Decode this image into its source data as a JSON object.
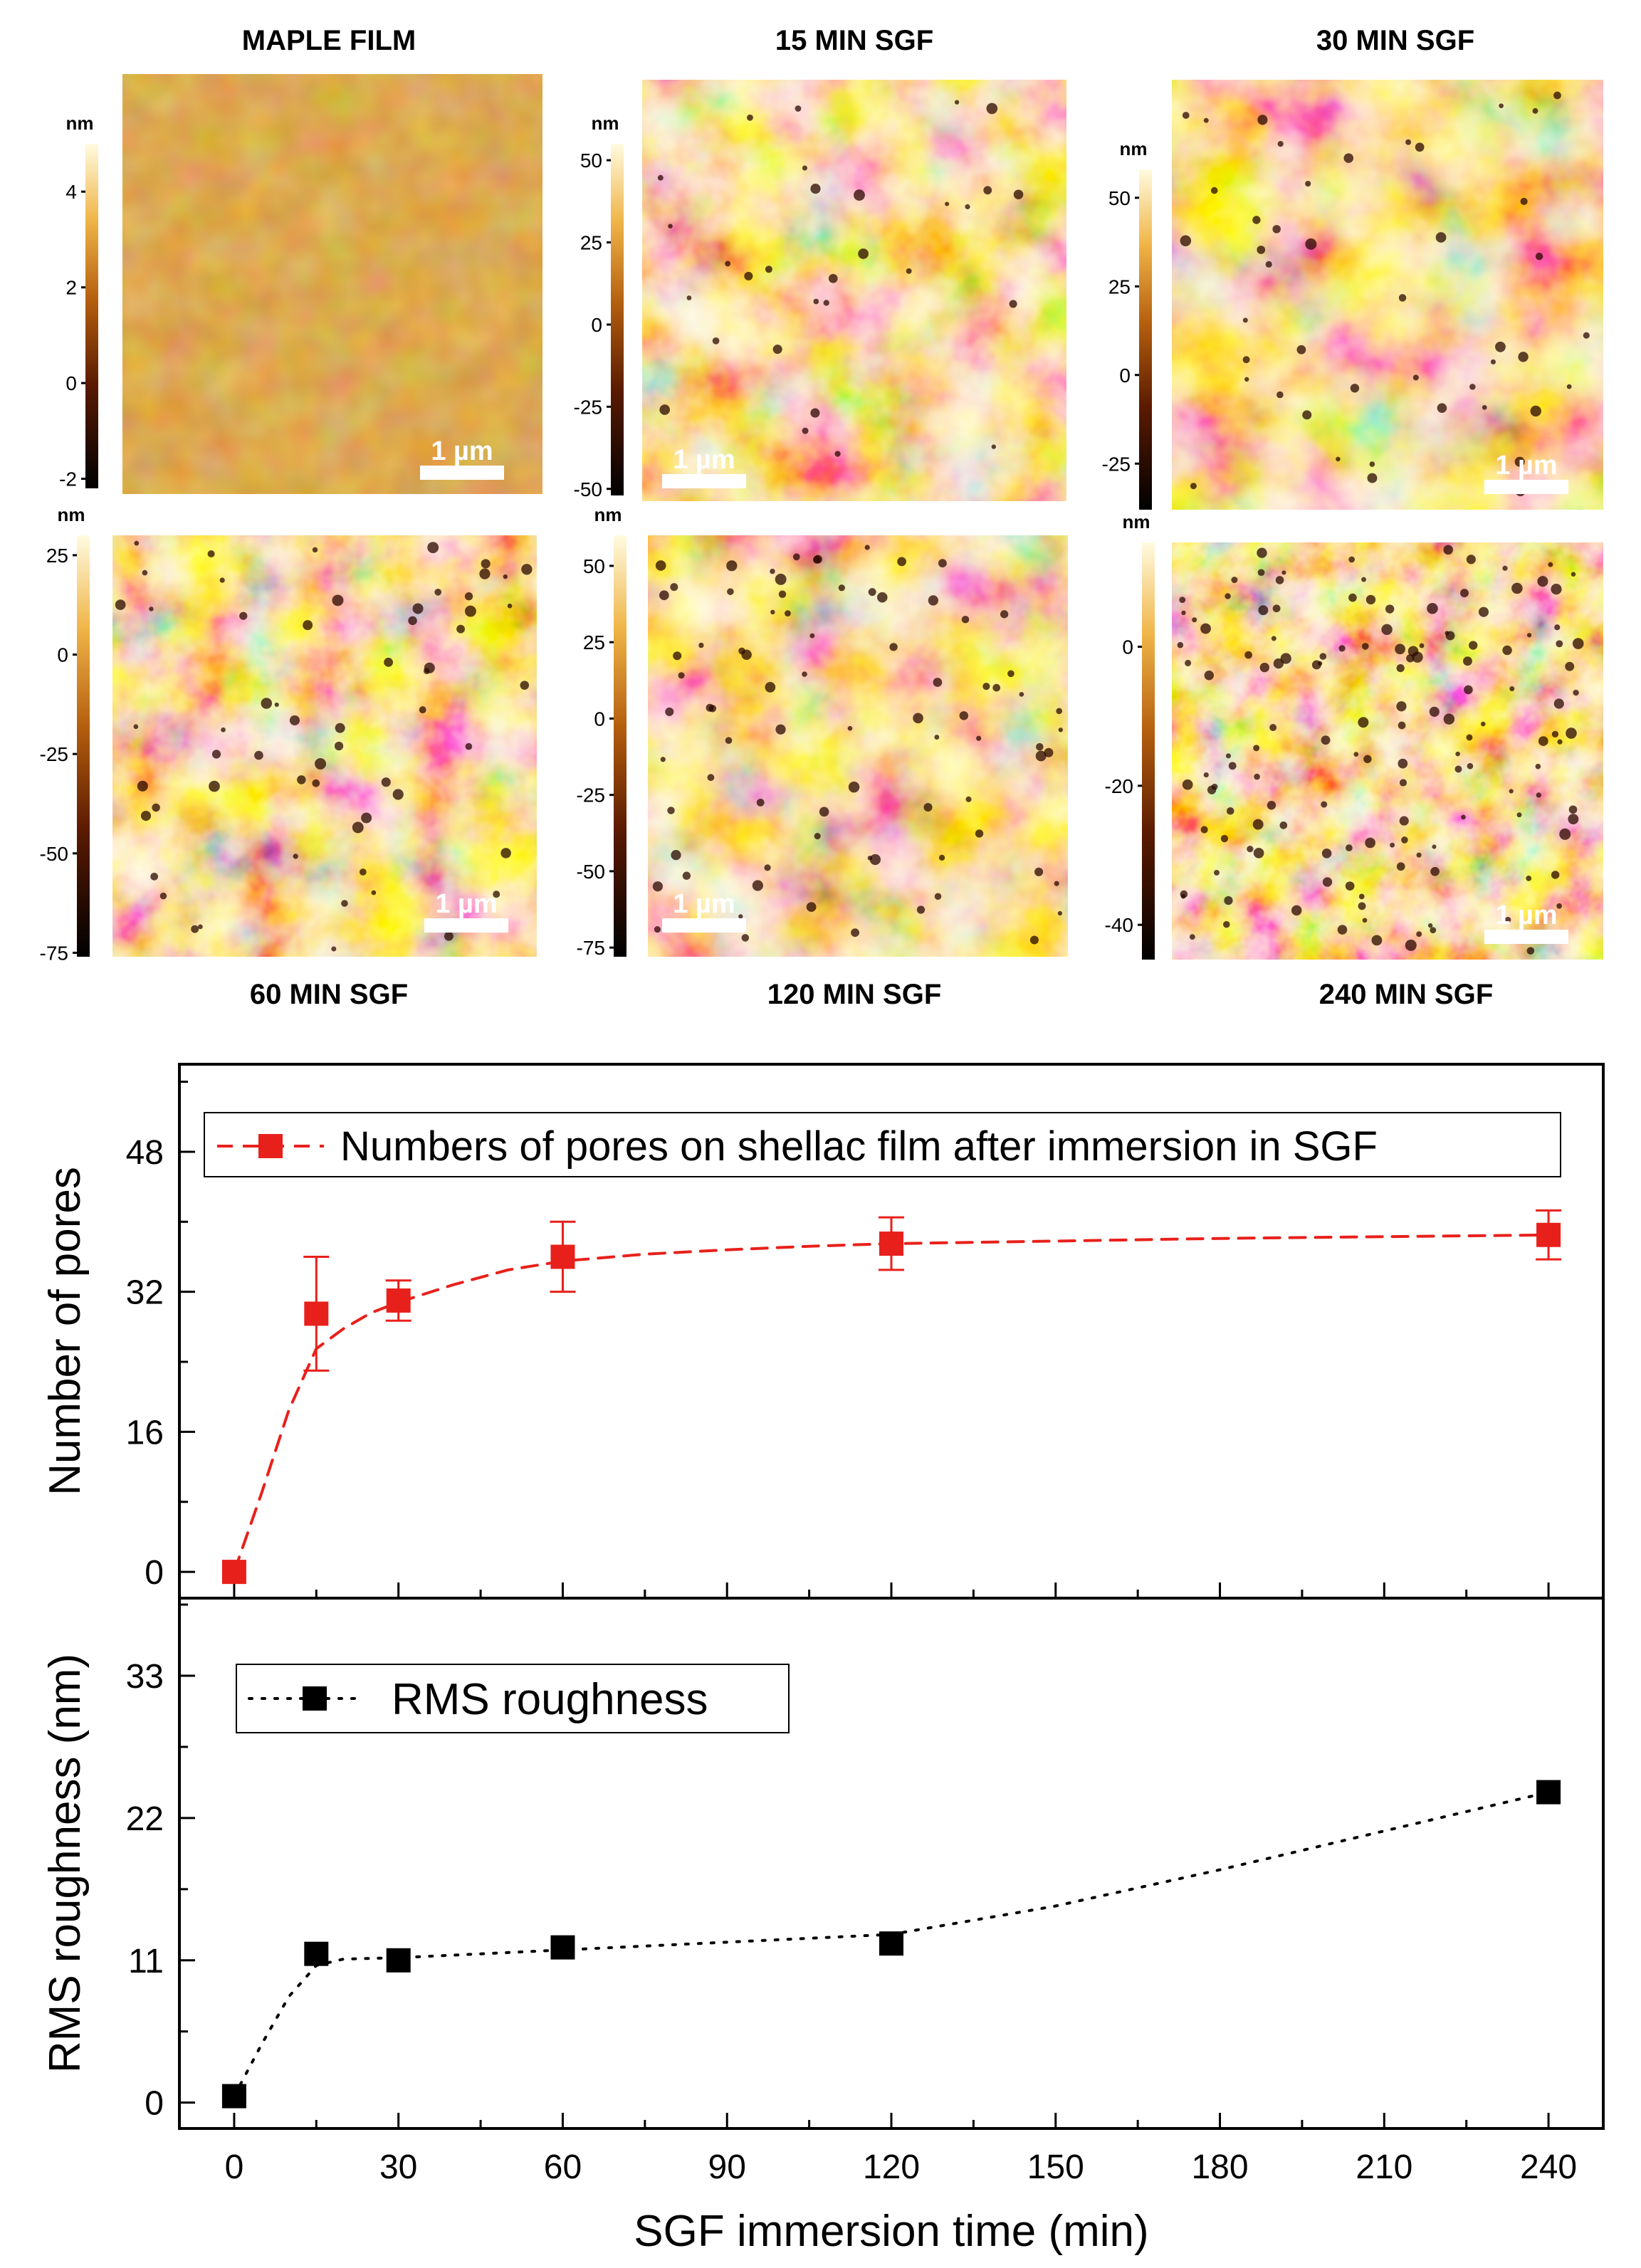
{
  "afm": {
    "scale_bar_label": "1 µm",
    "unit": "nm",
    "panels": [
      {
        "title": "MAPLE FILM",
        "ticks": [
          4,
          2,
          0,
          -2
        ],
        "range": [
          -2.2,
          5
        ]
      },
      {
        "title": "15 MIN SGF",
        "ticks": [
          50,
          25,
          0,
          -25,
          -50
        ],
        "range": [
          -52,
          55
        ]
      },
      {
        "title": "30 MIN SGF",
        "ticks": [
          50,
          25,
          0,
          -25
        ],
        "range": [
          -38,
          58
        ]
      },
      {
        "title": "60 MIN SGF",
        "ticks": [
          25,
          0,
          -25,
          -50,
          -75
        ],
        "range": [
          -76,
          30
        ]
      },
      {
        "title": "120 MIN SGF",
        "ticks": [
          50,
          25,
          0,
          -25,
          -50,
          -75
        ],
        "range": [
          -78,
          60
        ]
      },
      {
        "title": "240 MIN SGF",
        "ticks": [
          0,
          -20,
          -40
        ],
        "range": [
          -45,
          15
        ]
      }
    ],
    "colors": {
      "dark": "#1a0400",
      "mid": "#b5600f",
      "light": "#fff8c8"
    }
  },
  "chart_data": [
    {
      "type": "line",
      "title": "",
      "xlabel": "SGF immersion time (min)",
      "ylabel": "Number of pores",
      "xlim": [
        -10,
        250
      ],
      "ylim": [
        -3,
        58
      ],
      "yticks": [
        0,
        16,
        32,
        48
      ],
      "legend": "top",
      "series": [
        {
          "name": "Numbers of pores on shellac film after immersion in SGF",
          "color": "#e8201b",
          "x": [
            0,
            15,
            30,
            60,
            120,
            240
          ],
          "y": [
            0,
            29.5,
            31,
            36,
            37.5,
            38.5
          ],
          "err": [
            0,
            6.5,
            2.3,
            4,
            3,
            2.8
          ],
          "fit_x": [
            0,
            5,
            10,
            15,
            20,
            25,
            30,
            40,
            50,
            60,
            75,
            90,
            105,
            120,
            150,
            180,
            210,
            240
          ],
          "fit_y": [
            0,
            9,
            18.5,
            25.5,
            27.8,
            29.6,
            30.8,
            32.8,
            34.5,
            35.5,
            36.3,
            36.8,
            37.2,
            37.5,
            37.8,
            38.1,
            38.3,
            38.5
          ]
        }
      ]
    },
    {
      "type": "line",
      "title": "",
      "xlabel": "SGF immersion time (min)",
      "ylabel": "RMS roughness (nm)",
      "xlim": [
        -10,
        250
      ],
      "ylim": [
        -2,
        39
      ],
      "yticks": [
        0,
        11,
        22,
        33
      ],
      "xticks": [
        0,
        30,
        60,
        90,
        120,
        150,
        180,
        210,
        240
      ],
      "legend": "top-left",
      "series": [
        {
          "name": "RMS roughness",
          "color": "#000000",
          "x": [
            0,
            15,
            30,
            60,
            120,
            240
          ],
          "y": [
            0.5,
            11.5,
            11,
            12,
            12.3,
            24
          ],
          "fit_x": [
            0,
            5,
            10,
            15,
            20,
            30,
            45,
            60,
            90,
            120,
            150,
            180,
            210,
            240
          ],
          "fit_y": [
            0.5,
            4.5,
            8.2,
            10.6,
            11.1,
            11.2,
            11.5,
            11.8,
            12.4,
            13,
            15.2,
            18,
            21,
            24
          ]
        }
      ]
    }
  ]
}
